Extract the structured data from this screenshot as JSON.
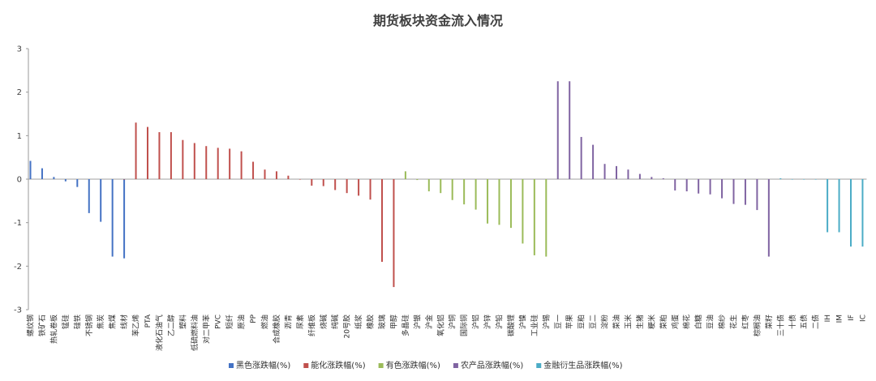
{
  "chart_data": {
    "type": "bar",
    "title": "期货板块资金流入情况",
    "ylim": [
      -3,
      3
    ],
    "yticks": [
      3,
      2,
      1,
      0,
      -1,
      -2,
      -3
    ],
    "grid": false,
    "legend_position": "bottom",
    "categories": [
      "螺纹钢",
      "铁矿石",
      "热轧卷板",
      "锰硅",
      "硅铁",
      "不锈钢",
      "焦炭",
      "焦煤",
      "线材",
      "苯乙烯",
      "PTA",
      "液化石油气",
      "乙二醇",
      "塑料",
      "低硫燃料油",
      "对二甲苯",
      "PVC",
      "短纤",
      "原油",
      "PP",
      "燃油",
      "合成橡胶",
      "沥青",
      "尿素",
      "纤维板",
      "烧碱",
      "纯碱",
      "20号胶",
      "纸浆",
      "橡胶",
      "玻璃",
      "甲醇",
      "多晶硅",
      "沪银",
      "沪金",
      "氧化铝",
      "沪铜",
      "国际铜",
      "沪铝",
      "沪锌",
      "沪铅",
      "碳酸锂",
      "沪镍",
      "工业硅",
      "沪锡",
      "豆一",
      "苹果",
      "豆粕",
      "豆二",
      "淀粉",
      "菜油",
      "玉米",
      "生猪",
      "粳米",
      "菜粕",
      "鸡蛋",
      "棉花",
      "白糖",
      "豆油",
      "棉纱",
      "花生",
      "红枣",
      "棕榈油",
      "菜籽",
      "三十债",
      "十债",
      "五债",
      "二债",
      "IH",
      "IM",
      "IF",
      "IC"
    ],
    "series": [
      {
        "name": "黑色涨跌幅(%)",
        "color": "#4472c4",
        "values": [
          0.42,
          0.25,
          0.05,
          -0.05,
          -0.18,
          -0.78,
          -0.98,
          -1.78,
          -1.82,
          null,
          null,
          null,
          null,
          null,
          null,
          null,
          null,
          null,
          null,
          null,
          null,
          null,
          null,
          null,
          null,
          null,
          null,
          null,
          null,
          null,
          null,
          null,
          null,
          null,
          null,
          null,
          null,
          null,
          null,
          null,
          null,
          null,
          null,
          null,
          null,
          null,
          null,
          null,
          null,
          null,
          null,
          null,
          null,
          null,
          null,
          null,
          null,
          null,
          null,
          null,
          null,
          null,
          null,
          null,
          null,
          null,
          null,
          null,
          null,
          null,
          null,
          null
        ]
      },
      {
        "name": "能化涨跌幅(%)",
        "color": "#c0504d",
        "values": [
          null,
          null,
          null,
          null,
          null,
          null,
          null,
          null,
          0,
          1.3,
          1.2,
          1.08,
          1.08,
          0.9,
          0.83,
          0.76,
          0.72,
          0.7,
          0.64,
          0.4,
          0.22,
          0.18,
          0.08,
          0,
          -0.15,
          -0.16,
          -0.25,
          -0.32,
          -0.38,
          -0.47,
          -1.9,
          -2.48,
          null,
          null,
          null,
          null,
          null,
          null,
          null,
          null,
          null,
          null,
          null,
          null,
          null,
          null,
          null,
          null,
          null,
          null,
          null,
          null,
          null,
          null,
          null,
          null,
          null,
          null,
          null,
          null,
          null,
          null,
          null,
          null,
          null,
          null,
          null,
          null,
          null,
          null,
          null,
          null
        ]
      },
      {
        "name": "有色涨跌幅(%)",
        "color": "#9bbb59",
        "values": [
          null,
          null,
          null,
          null,
          null,
          null,
          null,
          null,
          null,
          null,
          null,
          null,
          null,
          null,
          null,
          null,
          null,
          null,
          null,
          null,
          null,
          null,
          null,
          null,
          null,
          null,
          null,
          null,
          null,
          null,
          null,
          null,
          0.18,
          -0.02,
          -0.28,
          -0.32,
          -0.48,
          -0.58,
          -0.7,
          -1.02,
          -1.05,
          -1.12,
          -1.48,
          -1.75,
          -1.78,
          null,
          null,
          null,
          null,
          null,
          null,
          null,
          null,
          null,
          null,
          null,
          null,
          null,
          null,
          null,
          null,
          null,
          null,
          null,
          null,
          null,
          null,
          null,
          null,
          null,
          null,
          null
        ]
      },
      {
        "name": "农产品涨跌幅(%)",
        "color": "#8064a2",
        "values": [
          null,
          null,
          null,
          null,
          null,
          null,
          null,
          null,
          null,
          null,
          null,
          null,
          null,
          null,
          null,
          null,
          null,
          null,
          null,
          null,
          null,
          null,
          null,
          null,
          null,
          null,
          null,
          null,
          null,
          null,
          null,
          null,
          null,
          null,
          null,
          null,
          null,
          null,
          null,
          null,
          null,
          null,
          null,
          null,
          null,
          2.25,
          2.25,
          0.97,
          0.79,
          0.35,
          0.3,
          0.22,
          0.12,
          0.05,
          0.02,
          -0.26,
          -0.28,
          -0.33,
          -0.35,
          -0.44,
          -0.57,
          -0.59,
          -0.71,
          -1.78,
          null,
          null,
          null,
          null,
          null,
          null,
          null,
          null
        ]
      },
      {
        "name": "金融衍生品涨跌幅(%)",
        "color": "#4bacc6",
        "values": [
          null,
          null,
          null,
          null,
          null,
          null,
          null,
          null,
          null,
          null,
          null,
          null,
          null,
          null,
          null,
          null,
          null,
          null,
          null,
          null,
          null,
          null,
          null,
          null,
          null,
          null,
          null,
          null,
          null,
          null,
          null,
          null,
          null,
          null,
          null,
          null,
          null,
          null,
          null,
          null,
          null,
          null,
          null,
          null,
          null,
          null,
          null,
          null,
          null,
          null,
          null,
          null,
          null,
          null,
          null,
          null,
          null,
          null,
          null,
          null,
          null,
          null,
          null,
          null,
          0.02,
          0,
          0,
          0,
          -1.22,
          -1.22,
          -1.55,
          -1.55
        ]
      }
    ]
  }
}
